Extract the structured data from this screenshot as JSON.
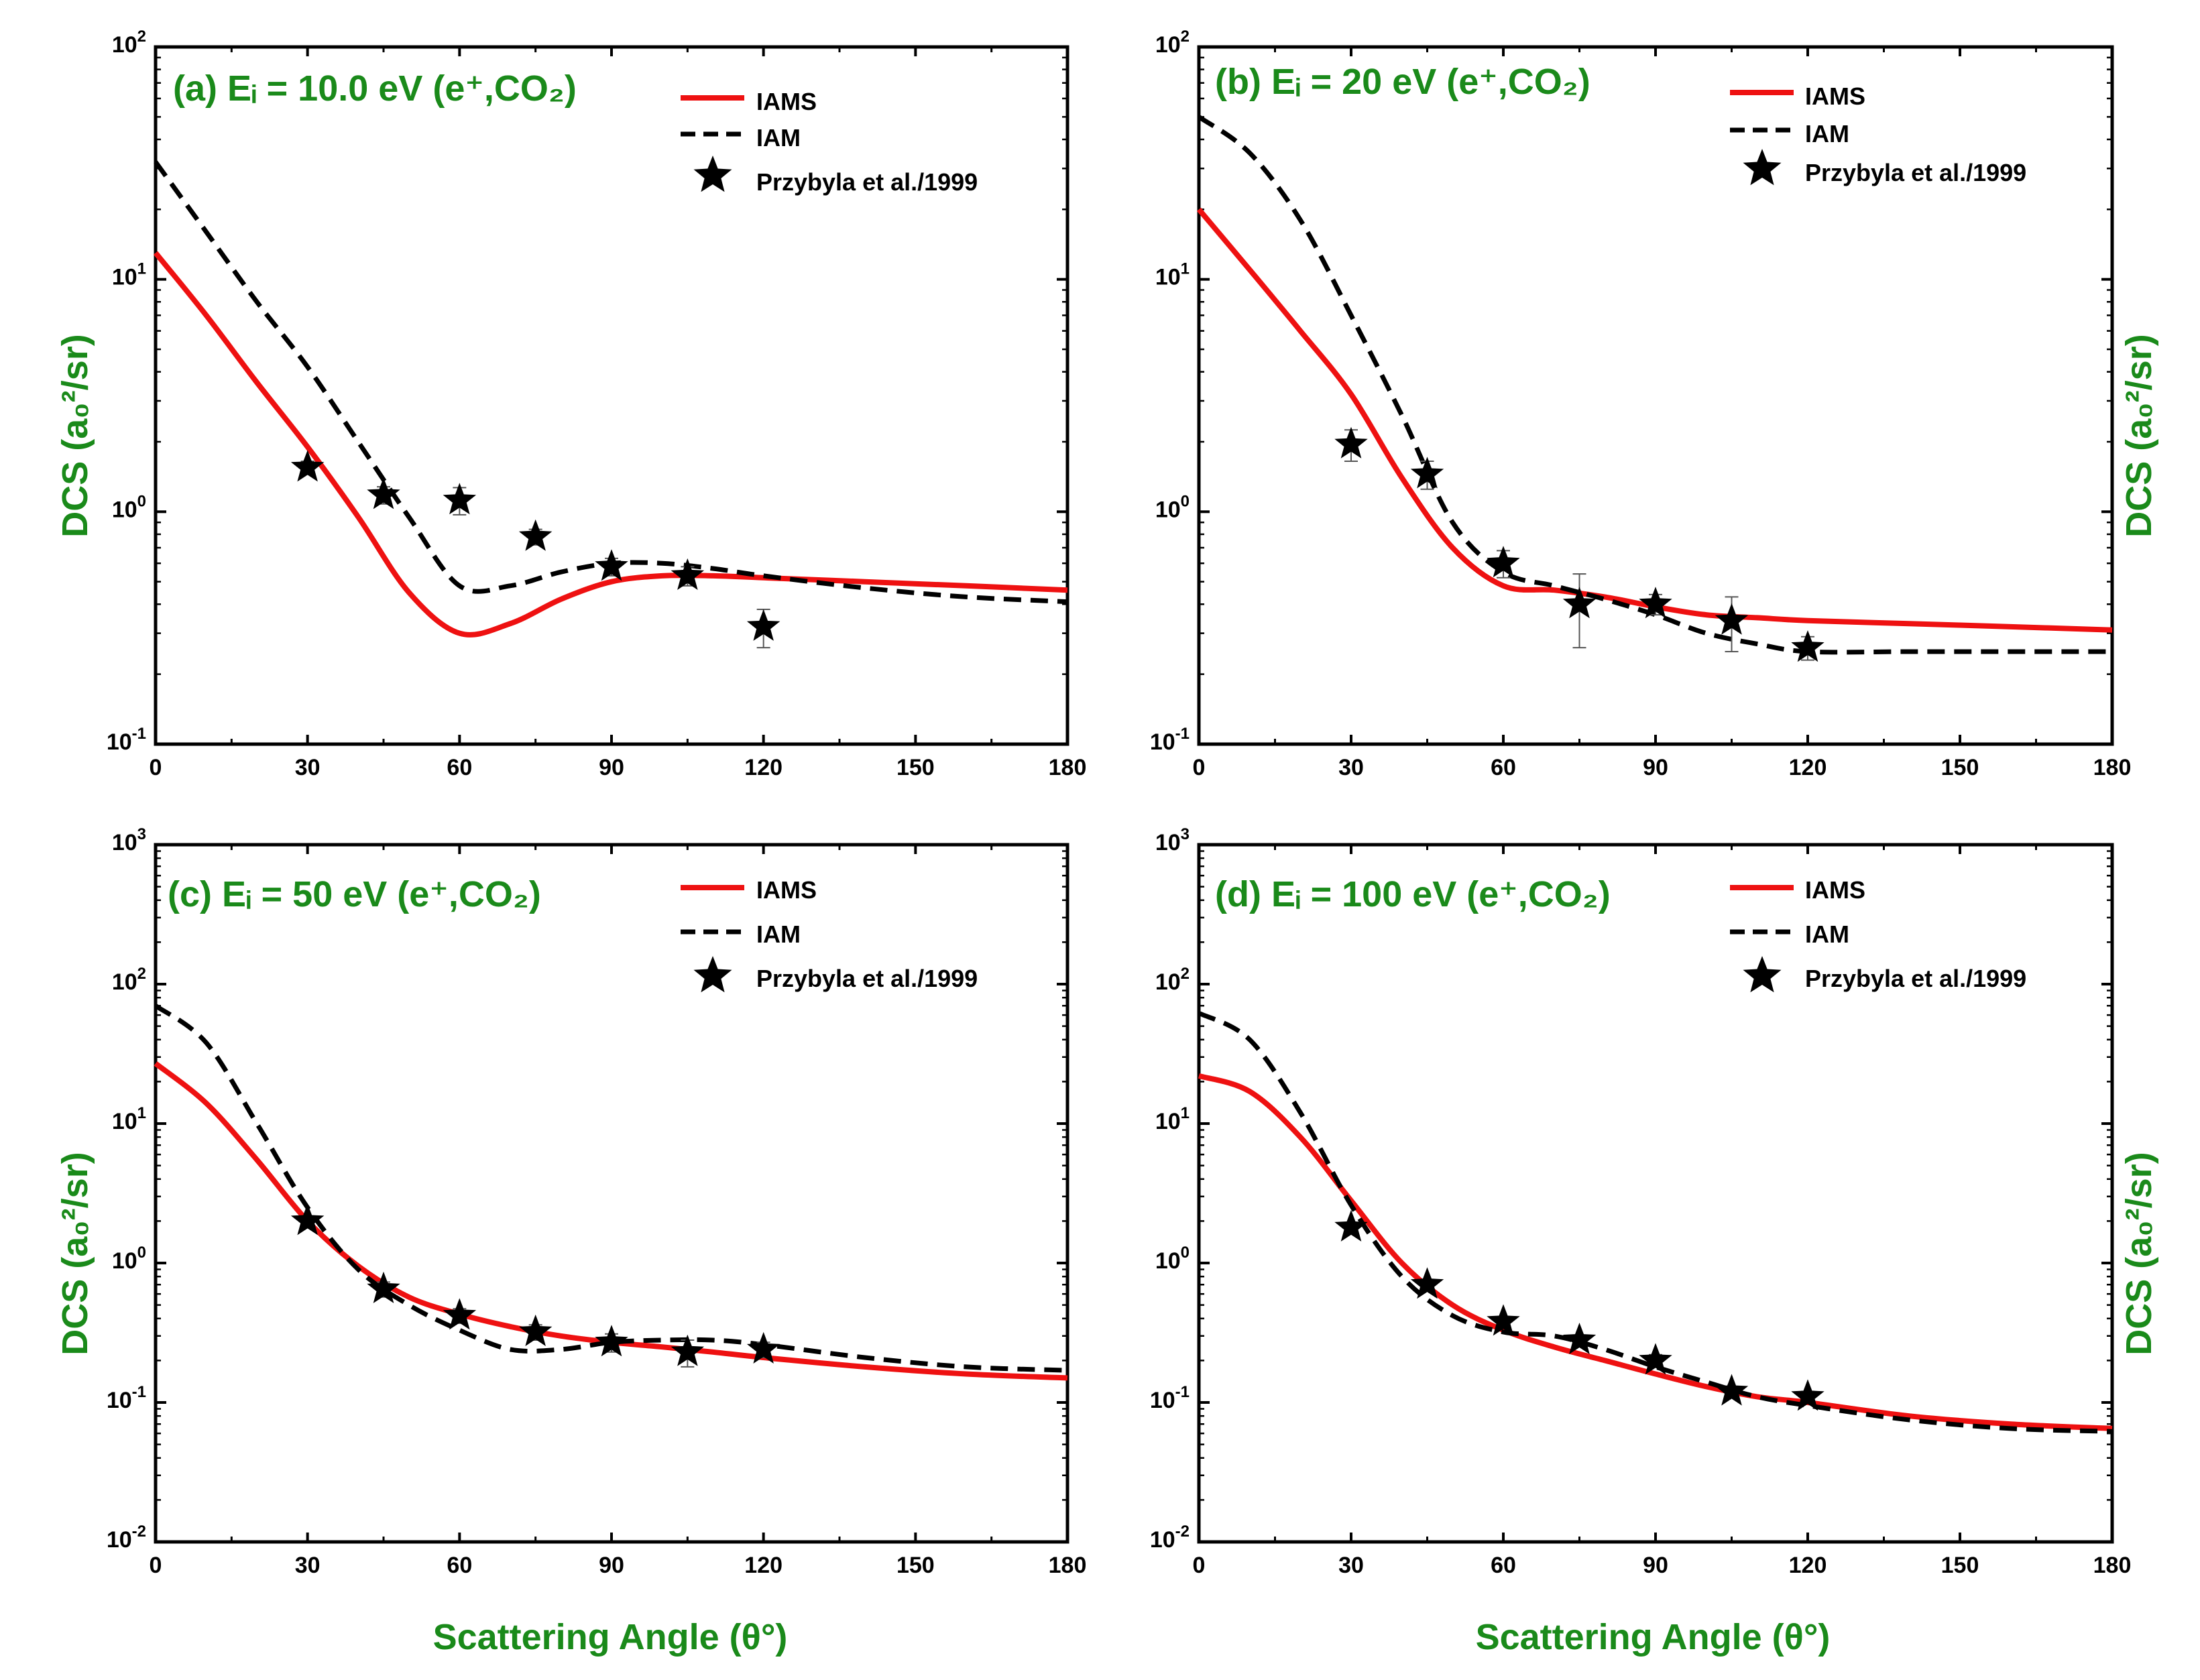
{
  "figure": {
    "xlabel": "Scattering Angle (θ°)",
    "ylabel": "DCS (a₀²/sr)"
  },
  "chart_data": [
    {
      "type": "line",
      "title": "(a) Eᵢ = 10.0 eV (e⁺,CO₂)",
      "xlabel": "Scattering Angle (θ°)",
      "ylabel": "DCS (a₀²/sr)",
      "xlim": [
        0,
        180
      ],
      "ylim_log10": [
        -1,
        2
      ],
      "yscale": "log",
      "xticks": [
        "0",
        "30",
        "60",
        "90",
        "120",
        "150",
        "180"
      ],
      "yticks": [
        {
          "base": "10",
          "exp": "-1"
        },
        {
          "base": "10",
          "exp": "0"
        },
        {
          "base": "10",
          "exp": "1"
        },
        {
          "base": "10",
          "exp": "2"
        }
      ],
      "legend_position": "top-right",
      "series": [
        {
          "name": "IAMS",
          "style": "solid",
          "color": "#ee1111",
          "x": [
            0,
            10,
            20,
            30,
            40,
            50,
            60,
            70,
            80,
            90,
            100,
            110,
            120,
            140,
            160,
            180
          ],
          "y": [
            13,
            7,
            3.6,
            1.9,
            0.95,
            0.45,
            0.3,
            0.33,
            0.42,
            0.5,
            0.53,
            0.53,
            0.52,
            0.5,
            0.48,
            0.46
          ]
        },
        {
          "name": "IAM",
          "style": "dashed",
          "color": "#000000",
          "x": [
            0,
            10,
            20,
            30,
            40,
            50,
            60,
            70,
            80,
            90,
            100,
            110,
            120,
            140,
            160,
            180
          ],
          "y": [
            32,
            16,
            8,
            4.2,
            2.0,
            0.95,
            0.48,
            0.48,
            0.55,
            0.6,
            0.6,
            0.57,
            0.53,
            0.47,
            0.43,
            0.41
          ]
        },
        {
          "name": "Przybyla et al./1999",
          "style": "stars",
          "color": "#000000",
          "x": [
            30,
            45,
            60,
            75,
            90,
            105,
            120
          ],
          "y": [
            1.55,
            1.18,
            1.12,
            0.78,
            0.58,
            0.53,
            0.32
          ],
          "err": [
            0.1,
            0.1,
            0.15,
            0.06,
            0.05,
            0.05,
            0.06
          ]
        }
      ]
    },
    {
      "type": "line",
      "title": "(b) Eᵢ = 20 eV (e⁺,CO₂)",
      "xlabel": "Scattering Angle (θ°)",
      "ylabel": "DCS (a₀²/sr)",
      "xlim": [
        0,
        180
      ],
      "ylim_log10": [
        -1,
        2
      ],
      "yscale": "log",
      "xticks": [
        "0",
        "30",
        "60",
        "90",
        "120",
        "150",
        "180"
      ],
      "yticks": [
        {
          "base": "10",
          "exp": "-1"
        },
        {
          "base": "10",
          "exp": "0"
        },
        {
          "base": "10",
          "exp": "1"
        },
        {
          "base": "10",
          "exp": "2"
        }
      ],
      "legend_position": "top-right",
      "series": [
        {
          "name": "IAMS",
          "style": "solid",
          "color": "#ee1111",
          "x": [
            0,
            10,
            20,
            30,
            40,
            50,
            60,
            70,
            80,
            90,
            100,
            110,
            120,
            140,
            160,
            180
          ],
          "y": [
            20,
            11,
            6,
            3.2,
            1.4,
            0.7,
            0.48,
            0.46,
            0.43,
            0.39,
            0.36,
            0.35,
            0.34,
            0.33,
            0.32,
            0.31
          ]
        },
        {
          "name": "IAM",
          "style": "dashed",
          "color": "#000000",
          "x": [
            0,
            10,
            20,
            30,
            40,
            50,
            60,
            70,
            80,
            90,
            100,
            110,
            120,
            140,
            160,
            180
          ],
          "y": [
            50,
            35,
            18,
            7,
            2.6,
            0.9,
            0.55,
            0.48,
            0.42,
            0.36,
            0.3,
            0.27,
            0.25,
            0.25,
            0.25,
            0.25
          ]
        },
        {
          "name": "Przybyla et al./1999",
          "style": "stars",
          "color": "#000000",
          "x": [
            30,
            45,
            60,
            75,
            90,
            105,
            120
          ],
          "y": [
            1.95,
            1.45,
            0.6,
            0.4,
            0.4,
            0.34,
            0.26
          ],
          "err": [
            0.3,
            0.2,
            0.08,
            0.14,
            0.04,
            0.09,
            0.03
          ]
        }
      ]
    },
    {
      "type": "line",
      "title": "(c) Eᵢ = 50 eV (e⁺,CO₂)",
      "xlabel": "Scattering Angle (θ°)",
      "ylabel": "DCS (a₀²/sr)",
      "xlim": [
        0,
        180
      ],
      "ylim_log10": [
        -2,
        3
      ],
      "yscale": "log",
      "xticks": [
        "0",
        "30",
        "60",
        "90",
        "120",
        "150",
        "180"
      ],
      "yticks": [
        {
          "base": "10",
          "exp": "-2"
        },
        {
          "base": "10",
          "exp": "-1"
        },
        {
          "base": "10",
          "exp": "0"
        },
        {
          "base": "10",
          "exp": "1"
        },
        {
          "base": "10",
          "exp": "2"
        },
        {
          "base": "10",
          "exp": "3"
        }
      ],
      "legend_position": "top-right",
      "series": [
        {
          "name": "IAMS",
          "style": "solid",
          "color": "#ee1111",
          "x": [
            0,
            10,
            20,
            30,
            40,
            50,
            60,
            70,
            80,
            90,
            100,
            110,
            120,
            140,
            160,
            180
          ],
          "y": [
            27,
            14,
            5.5,
            2.0,
            0.95,
            0.57,
            0.43,
            0.35,
            0.3,
            0.27,
            0.25,
            0.23,
            0.21,
            0.18,
            0.16,
            0.15
          ]
        },
        {
          "name": "IAM",
          "style": "dashed",
          "color": "#000000",
          "x": [
            0,
            10,
            20,
            30,
            40,
            50,
            60,
            70,
            80,
            90,
            100,
            110,
            120,
            140,
            160,
            180
          ],
          "y": [
            70,
            38,
            10,
            2.5,
            0.9,
            0.5,
            0.33,
            0.24,
            0.24,
            0.27,
            0.28,
            0.28,
            0.26,
            0.21,
            0.18,
            0.17
          ]
        },
        {
          "name": "Przybyla et al./1999",
          "style": "stars",
          "color": "#000000",
          "x": [
            30,
            45,
            60,
            75,
            90,
            105,
            120
          ],
          "y": [
            2.0,
            0.65,
            0.42,
            0.32,
            0.27,
            0.23,
            0.24
          ],
          "err": [
            0.15,
            0.08,
            0.05,
            0.04,
            0.04,
            0.05,
            0.03
          ]
        }
      ]
    },
    {
      "type": "line",
      "title": "(d) Eᵢ = 100 eV (e⁺,CO₂)",
      "xlabel": "Scattering Angle (θ°)",
      "ylabel": "DCS (a₀²/sr)",
      "xlim": [
        0,
        180
      ],
      "ylim_log10": [
        -2,
        3
      ],
      "yscale": "log",
      "xticks": [
        "0",
        "30",
        "60",
        "90",
        "120",
        "150",
        "180"
      ],
      "yticks": [
        {
          "base": "10",
          "exp": "-2"
        },
        {
          "base": "10",
          "exp": "-1"
        },
        {
          "base": "10",
          "exp": "0"
        },
        {
          "base": "10",
          "exp": "1"
        },
        {
          "base": "10",
          "exp": "2"
        },
        {
          "base": "10",
          "exp": "3"
        }
      ],
      "legend_position": "top-right",
      "series": [
        {
          "name": "IAMS",
          "style": "solid",
          "color": "#ee1111",
          "x": [
            0,
            10,
            20,
            30,
            40,
            50,
            60,
            70,
            80,
            90,
            100,
            110,
            120,
            140,
            160,
            180
          ],
          "y": [
            22,
            17,
            8,
            2.8,
            1.0,
            0.5,
            0.33,
            0.25,
            0.2,
            0.16,
            0.13,
            0.11,
            0.1,
            0.08,
            0.07,
            0.065
          ]
        },
        {
          "name": "IAM",
          "style": "dashed",
          "color": "#000000",
          "x": [
            0,
            10,
            20,
            30,
            40,
            50,
            60,
            70,
            80,
            90,
            100,
            110,
            120,
            140,
            160,
            180
          ],
          "y": [
            62,
            40,
            12,
            2.6,
            0.8,
            0.42,
            0.32,
            0.3,
            0.24,
            0.18,
            0.14,
            0.11,
            0.095,
            0.075,
            0.065,
            0.062
          ]
        },
        {
          "name": "Przybyla et al./1999",
          "style": "stars",
          "color": "#000000",
          "x": [
            30,
            45,
            60,
            75,
            90,
            105,
            120
          ],
          "y": [
            1.8,
            0.7,
            0.38,
            0.28,
            0.2,
            0.12,
            0.11
          ],
          "err": [
            0.1,
            0.05,
            0.03,
            0.02,
            0.02,
            0.01,
            0.01
          ]
        }
      ]
    }
  ]
}
